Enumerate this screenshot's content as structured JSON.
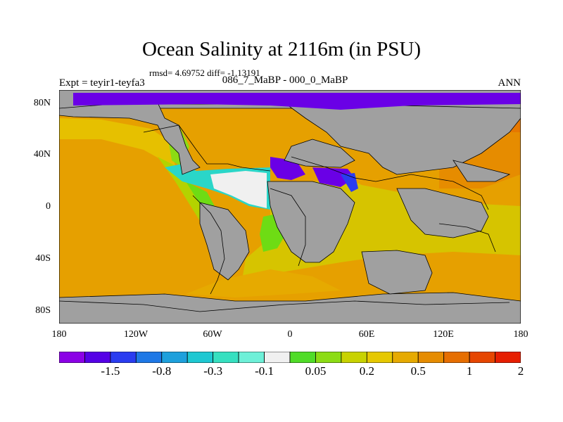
{
  "title": "Ocean Salinity at 2116m (in PSU)",
  "stats": "rmsd= 4.69752 diff= -1.13191",
  "subtitle": "086_7_MaBP - 000_0_MaBP",
  "experiment": "Expt = teyir1-teyfa3",
  "season": "ANN",
  "lat_ticks": [
    "80N",
    "40N",
    "0",
    "40S",
    "80S"
  ],
  "lon_ticks": [
    "180",
    "120W",
    "60W",
    "0",
    "60E",
    "120E",
    "180"
  ],
  "colorbar": {
    "colors": [
      "#8b00e6",
      "#5500e6",
      "#2a3cf0",
      "#1e78e6",
      "#1ea0dc",
      "#1ec8d2",
      "#36e0c0",
      "#6ef0d8",
      "#f0f0f0",
      "#50dc28",
      "#8cdc14",
      "#c8d200",
      "#e6c800",
      "#e6aa00",
      "#e68c00",
      "#e66e00",
      "#e64600",
      "#e61e00"
    ],
    "labels": [
      "-1.5",
      "-0.8",
      "-0.3",
      "-0.1",
      "0.05",
      "0.2",
      "0.5",
      "1",
      "2"
    ]
  },
  "colors": {
    "land": "#a0a0a0",
    "ocean_main": "#e6a000",
    "ocean_warm": "#e68c00",
    "ocean_yellow": "#d6c400",
    "ocean_lightyellow": "#f0d000",
    "green": "#6edc14",
    "cyan": "#2ad6c8",
    "white": "#f0f0f0",
    "purple": "#6a00e6",
    "blue": "#2a3cf0"
  }
}
